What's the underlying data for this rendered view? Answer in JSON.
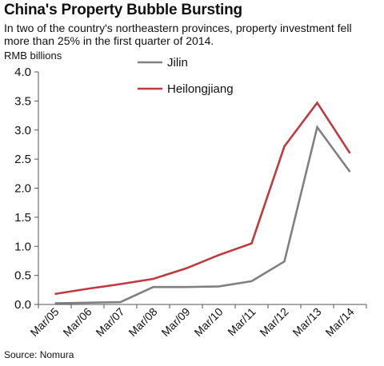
{
  "title": "China's Property Bubble Bursting",
  "subtitle": "In two of the country's northeastern provinces, property investment fell more than 25% in the first quarter of 2014.",
  "unit_label": "RMB billions",
  "source": "Source: Nomura",
  "colors": {
    "jilin": "#808080",
    "heilongjiang": "#c0393f",
    "axis": "#555555"
  },
  "chart_data": {
    "type": "line",
    "title": "China's Property Bubble Bursting",
    "xlabel": "",
    "ylabel": "RMB billions",
    "ylim": [
      0,
      4.0
    ],
    "yticks": [
      "0.0",
      "0.5",
      "1.0",
      "1.5",
      "2.0",
      "2.5",
      "3.0",
      "3.5",
      "4.0"
    ],
    "grid": false,
    "legend": "top-left",
    "categories": [
      "Mar/05",
      "Mar/06",
      "Mar/07",
      "Mar/08",
      "Mar/09",
      "Mar/10",
      "Mar/11",
      "Mar/12",
      "Mar/13",
      "Mar/14"
    ],
    "series": [
      {
        "name": "Jilin",
        "color": "#808080",
        "values": [
          0.02,
          0.03,
          0.04,
          0.3,
          0.3,
          0.31,
          0.4,
          0.74,
          3.05,
          2.28
        ]
      },
      {
        "name": "Heilongjiang",
        "color": "#c0393f",
        "values": [
          0.18,
          0.27,
          0.35,
          0.44,
          0.62,
          0.85,
          1.05,
          2.72,
          3.47,
          2.6
        ]
      }
    ]
  }
}
